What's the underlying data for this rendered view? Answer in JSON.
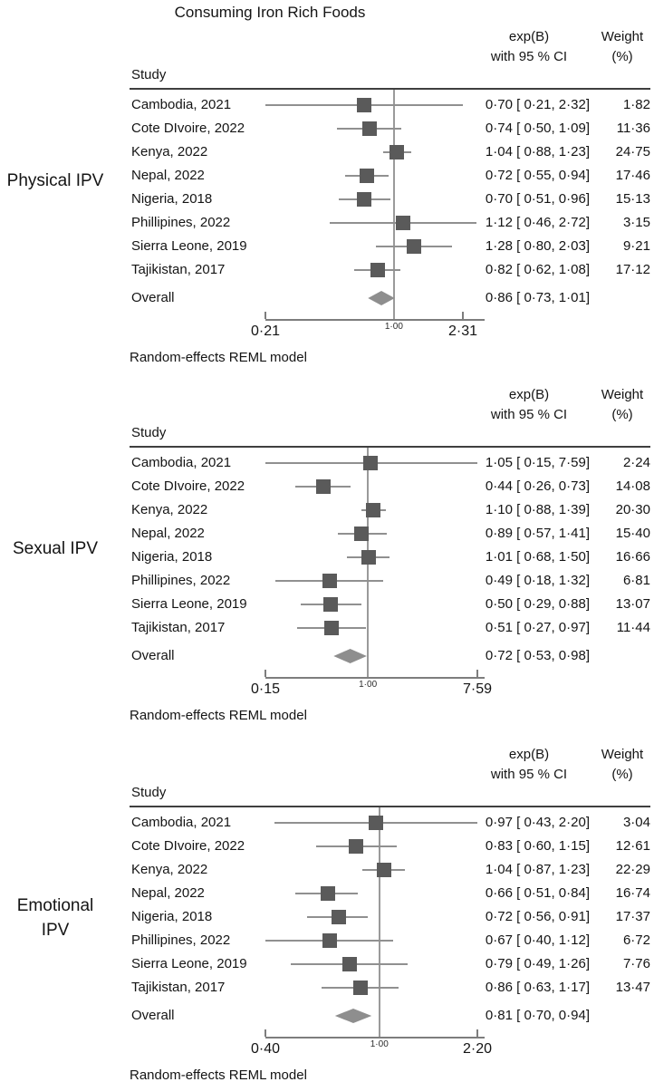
{
  "title": "Consuming Iron Rich Foods",
  "footnote": "Random-effects REML model",
  "header": {
    "study": "Study",
    "ci_line1": "exp(B)",
    "ci_line2": "with 95 % CI",
    "weight_line1": "Weight",
    "weight_line2": "(%)"
  },
  "colors": {
    "square": "#5a5a5a",
    "ci_line": "#909090",
    "diamond": "#8e8e8e",
    "ref_line": "#9a9a9a",
    "axis": "#7d7d7d",
    "header_rule": "#3f3f3f",
    "text": "#141414"
  },
  "chart_data": [
    {
      "type": "forest",
      "panel_label": "Physical IPV",
      "axis": {
        "min": 0.21,
        "ref": 1.0,
        "max": 2.31,
        "tick_labels": [
          "0·21",
          "1·00",
          "2·31"
        ]
      },
      "studies": [
        {
          "label": "Cambodia, 2021",
          "est": 0.7,
          "lo": 0.21,
          "hi": 2.32,
          "ci_label": "0·70 [ 0·21, 2·32]",
          "weight": "1·82"
        },
        {
          "label": "Cote DIvoire, 2022",
          "est": 0.74,
          "lo": 0.5,
          "hi": 1.09,
          "ci_label": "0·74 [ 0·50, 1·09]",
          "weight": "11·36"
        },
        {
          "label": "Kenya, 2022",
          "est": 1.04,
          "lo": 0.88,
          "hi": 1.23,
          "ci_label": "1·04 [ 0·88, 1·23]",
          "weight": "24·75"
        },
        {
          "label": "Nepal, 2022",
          "est": 0.72,
          "lo": 0.55,
          "hi": 0.94,
          "ci_label": "0·72 [ 0·55, 0·94]",
          "weight": "17·46"
        },
        {
          "label": "Nigeria, 2018",
          "est": 0.7,
          "lo": 0.51,
          "hi": 0.96,
          "ci_label": "0·70 [ 0·51, 0·96]",
          "weight": "15·13"
        },
        {
          "label": "Phillipines, 2022",
          "est": 1.12,
          "lo": 0.46,
          "hi": 2.72,
          "ci_label": "1·12 [ 0·46, 2·72]",
          "weight": "3·15"
        },
        {
          "label": "Sierra Leone, 2019",
          "est": 1.28,
          "lo": 0.8,
          "hi": 2.03,
          "ci_label": "1·28 [ 0·80, 2·03]",
          "weight": "9·21"
        },
        {
          "label": "Tajikistan, 2017",
          "est": 0.82,
          "lo": 0.62,
          "hi": 1.08,
          "ci_label": "0·82 [ 0·62, 1·08]",
          "weight": "17·12"
        }
      ],
      "overall": {
        "label": "Overall",
        "est": 0.86,
        "lo": 0.73,
        "hi": 1.01,
        "ci_label": "0·86 [ 0·73, 1·01]"
      }
    },
    {
      "type": "forest",
      "panel_label": "Sexual IPV",
      "axis": {
        "min": 0.15,
        "ref": 1.0,
        "max": 7.59,
        "tick_labels": [
          "0·15",
          "1·00",
          "7·59"
        ]
      },
      "studies": [
        {
          "label": "Cambodia, 2021",
          "est": 1.05,
          "lo": 0.15,
          "hi": 7.59,
          "ci_label": "1·05 [ 0·15, 7·59]",
          "weight": "2·24"
        },
        {
          "label": "Cote DIvoire, 2022",
          "est": 0.44,
          "lo": 0.26,
          "hi": 0.73,
          "ci_label": "0·44 [ 0·26, 0·73]",
          "weight": "14·08"
        },
        {
          "label": "Kenya, 2022",
          "est": 1.1,
          "lo": 0.88,
          "hi": 1.39,
          "ci_label": "1·10 [ 0·88, 1·39]",
          "weight": "20·30"
        },
        {
          "label": "Nepal, 2022",
          "est": 0.89,
          "lo": 0.57,
          "hi": 1.41,
          "ci_label": "0·89 [ 0·57, 1·41]",
          "weight": "15·40"
        },
        {
          "label": "Nigeria, 2018",
          "est": 1.01,
          "lo": 0.68,
          "hi": 1.5,
          "ci_label": "1·01 [ 0·68, 1·50]",
          "weight": "16·66"
        },
        {
          "label": "Phillipines, 2022",
          "est": 0.49,
          "lo": 0.18,
          "hi": 1.32,
          "ci_label": "0·49 [ 0·18, 1·32]",
          "weight": "6·81"
        },
        {
          "label": "Sierra Leone, 2019",
          "est": 0.5,
          "lo": 0.29,
          "hi": 0.88,
          "ci_label": "0·50 [ 0·29, 0·88]",
          "weight": "13·07"
        },
        {
          "label": "Tajikistan, 2017",
          "est": 0.51,
          "lo": 0.27,
          "hi": 0.97,
          "ci_label": "0·51 [ 0·27, 0·97]",
          "weight": "11·44"
        }
      ],
      "overall": {
        "label": "Overall",
        "est": 0.72,
        "lo": 0.53,
        "hi": 0.98,
        "ci_label": "0·72 [ 0·53, 0·98]"
      }
    },
    {
      "type": "forest",
      "panel_label": "Emotional IPV",
      "axis": {
        "min": 0.4,
        "ref": 1.0,
        "max": 2.2,
        "tick_labels": [
          "0·40",
          "1·00",
          "2·20"
        ]
      },
      "studies": [
        {
          "label": "Cambodia, 2021",
          "est": 0.97,
          "lo": 0.43,
          "hi": 2.2,
          "ci_label": "0·97 [ 0·43, 2·20]",
          "weight": "3·04"
        },
        {
          "label": "Cote DIvoire, 2022",
          "est": 0.83,
          "lo": 0.6,
          "hi": 1.15,
          "ci_label": "0·83 [ 0·60, 1·15]",
          "weight": "12·61"
        },
        {
          "label": "Kenya, 2022",
          "est": 1.04,
          "lo": 0.87,
          "hi": 1.23,
          "ci_label": "1·04 [ 0·87, 1·23]",
          "weight": "22·29"
        },
        {
          "label": "Nepal, 2022",
          "est": 0.66,
          "lo": 0.51,
          "hi": 0.84,
          "ci_label": "0·66 [ 0·51, 0·84]",
          "weight": "16·74"
        },
        {
          "label": "Nigeria, 2018",
          "est": 0.72,
          "lo": 0.56,
          "hi": 0.91,
          "ci_label": "0·72 [ 0·56, 0·91]",
          "weight": "17·37"
        },
        {
          "label": "Phillipines, 2022",
          "est": 0.67,
          "lo": 0.4,
          "hi": 1.12,
          "ci_label": "0·67 [ 0·40, 1·12]",
          "weight": "6·72"
        },
        {
          "label": "Sierra Leone, 2019",
          "est": 0.79,
          "lo": 0.49,
          "hi": 1.26,
          "ci_label": "0·79 [ 0·49, 1·26]",
          "weight": "7·76"
        },
        {
          "label": "Tajikistan, 2017",
          "est": 0.86,
          "lo": 0.63,
          "hi": 1.17,
          "ci_label": "0·86 [ 0·63, 1·17]",
          "weight": "13·47"
        }
      ],
      "overall": {
        "label": "Overall",
        "est": 0.81,
        "lo": 0.7,
        "hi": 0.94,
        "ci_label": "0·81 [ 0·70, 0·94]"
      }
    }
  ]
}
